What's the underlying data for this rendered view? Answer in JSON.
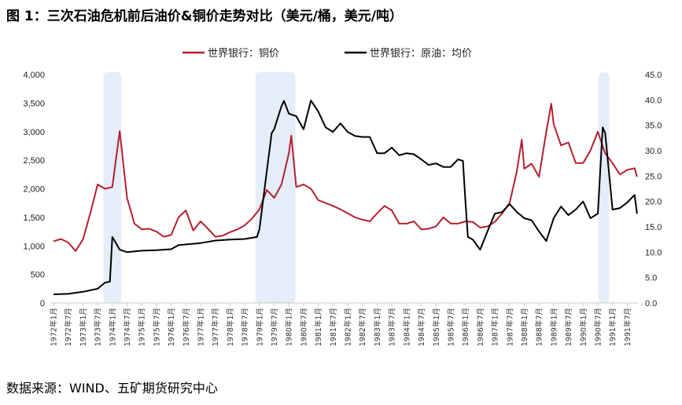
{
  "title": "图 1：三次石油危机前后油价&铜价走势对比（美元/桶，美元/吨）",
  "source": "数据来源：WIND、五矿期货研究中心",
  "chart_data": {
    "type": "line",
    "title": "图 1：三次石油危机前后油价&铜价走势对比（美元/桶，美元/吨）",
    "legend_position": "top",
    "grid": false,
    "colors": {
      "copper": "#b5202e",
      "oil": "#000000",
      "shade": "#e4edf8"
    },
    "left_axis": {
      "ylim": [
        0,
        4000
      ],
      "ticks": [
        "0",
        "500",
        "1,000",
        "1,500",
        "2,000",
        "2,500",
        "3,000",
        "3,500",
        "4,000"
      ]
    },
    "right_axis": {
      "ylim": [
        0,
        45
      ],
      "ticks": [
        "0.0",
        "5.0",
        "10.0",
        "15.0",
        "20.0",
        "25.0",
        "30.0",
        "35.0",
        "40.0",
        "45.0"
      ]
    },
    "x_tick_labels": [
      "1972年1月",
      "1972年7月",
      "1973年1月",
      "1973年7月",
      "1974年1月",
      "1974年7月",
      "1975年1月",
      "1975年7月",
      "1976年1月",
      "1976年7月",
      "1977年1月",
      "1977年7月",
      "1978年1月",
      "1978年7月",
      "1979年1月",
      "1979年7月",
      "1980年1月",
      "1980年7月",
      "1981年1月",
      "1981年7月",
      "1982年1月",
      "1982年7月",
      "1983年1月",
      "1983年7月",
      "1984年1月",
      "1984年7月",
      "1985年1月",
      "1985年7月",
      "1986年1月",
      "1986年7月",
      "1987年1月",
      "1987年7月",
      "1988年1月",
      "1988年7月",
      "1989年1月",
      "1989年7月",
      "1990年1月",
      "1990年7月",
      "1991年1月",
      "1991年7月"
    ],
    "shaded_periods": [
      [
        "1973-10",
        "1974-03"
      ],
      [
        "1978-12",
        "1980-02"
      ],
      [
        "1990-08",
        "1990-10"
      ]
    ],
    "series": [
      {
        "name": "世界银行：铜价",
        "axis": "left",
        "x": [
          "1972-01",
          "1972-04",
          "1972-07",
          "1972-10",
          "1973-01",
          "1973-04",
          "1973-07",
          "1973-10",
          "1974-01",
          "1974-04",
          "1974-07",
          "1974-10",
          "1975-01",
          "1975-04",
          "1975-07",
          "1975-10",
          "1976-01",
          "1976-04",
          "1976-07",
          "1976-10",
          "1977-01",
          "1977-04",
          "1977-07",
          "1977-10",
          "1978-01",
          "1978-04",
          "1978-07",
          "1978-10",
          "1979-01",
          "1979-04",
          "1979-07",
          "1979-10",
          "1980-01",
          "1980-02",
          "1980-04",
          "1980-07",
          "1980-10",
          "1981-01",
          "1981-04",
          "1981-07",
          "1981-10",
          "1982-01",
          "1982-04",
          "1982-07",
          "1982-10",
          "1983-01",
          "1983-04",
          "1983-07",
          "1983-10",
          "1984-01",
          "1984-04",
          "1984-07",
          "1984-10",
          "1985-01",
          "1985-04",
          "1985-07",
          "1985-10",
          "1986-01",
          "1986-04",
          "1986-07",
          "1986-10",
          "1987-01",
          "1987-04",
          "1987-07",
          "1987-10",
          "1987-12",
          "1988-01",
          "1988-04",
          "1988-07",
          "1988-10",
          "1988-12",
          "1989-01",
          "1989-04",
          "1989-07",
          "1989-10",
          "1990-01",
          "1990-04",
          "1990-07",
          "1990-10",
          "1991-01",
          "1991-04",
          "1991-07",
          "1991-10",
          "1991-11"
        ],
        "values": [
          1080,
          1120,
          1060,
          910,
          1110,
          1570,
          2075,
          2000,
          2030,
          3010,
          1840,
          1390,
          1290,
          1300,
          1250,
          1160,
          1190,
          1500,
          1620,
          1270,
          1430,
          1300,
          1160,
          1180,
          1240,
          1290,
          1360,
          1480,
          1640,
          1980,
          1840,
          2075,
          2620,
          2930,
          2030,
          2075,
          2000,
          1800,
          1750,
          1700,
          1640,
          1570,
          1500,
          1460,
          1430,
          1570,
          1700,
          1620,
          1390,
          1390,
          1430,
          1290,
          1300,
          1340,
          1500,
          1390,
          1390,
          1430,
          1420,
          1320,
          1340,
          1420,
          1570,
          1750,
          2310,
          2860,
          2350,
          2440,
          2210,
          3000,
          3490,
          3130,
          2760,
          2810,
          2450,
          2450,
          2670,
          3000,
          2620,
          2450,
          2250,
          2330,
          2360,
          2210
        ]
      },
      {
        "name": "世界银行：原油：均价",
        "axis": "right",
        "x": [
          "1972-01",
          "1972-07",
          "1973-01",
          "1973-07",
          "1973-10",
          "1973-12",
          "1974-01",
          "1974-04",
          "1974-07",
          "1975-01",
          "1975-07",
          "1976-01",
          "1976-04",
          "1977-01",
          "1977-07",
          "1978-01",
          "1978-07",
          "1978-12",
          "1979-01",
          "1979-04",
          "1979-06",
          "1979-07",
          "1979-10",
          "1979-11",
          "1980-01",
          "1980-04",
          "1980-07",
          "1980-10",
          "1981-01",
          "1981-04",
          "1981-07",
          "1981-10",
          "1982-01",
          "1982-04",
          "1982-07",
          "1982-10",
          "1983-01",
          "1983-04",
          "1983-07",
          "1983-10",
          "1984-01",
          "1984-04",
          "1984-07",
          "1984-10",
          "1985-01",
          "1985-04",
          "1985-07",
          "1985-10",
          "1985-12",
          "1986-01",
          "1986-02",
          "1986-04",
          "1986-07",
          "1986-10",
          "1987-01",
          "1987-04",
          "1987-07",
          "1987-10",
          "1988-01",
          "1988-04",
          "1988-07",
          "1988-10",
          "1989-01",
          "1989-04",
          "1989-07",
          "1989-10",
          "1990-01",
          "1990-04",
          "1990-07",
          "1990-09",
          "1990-10",
          "1991-01",
          "1991-04",
          "1991-07",
          "1991-10",
          "1991-11"
        ],
        "values": [
          1.7,
          1.8,
          2.2,
          2.8,
          4.0,
          4.2,
          13.0,
          10.5,
          10.0,
          10.3,
          10.4,
          10.6,
          11.4,
          11.8,
          12.3,
          12.5,
          12.6,
          13.0,
          14.5,
          26.0,
          33.5,
          34.2,
          38.8,
          39.8,
          37.3,
          36.8,
          34.2,
          39.9,
          37.7,
          34.6,
          33.7,
          35.4,
          33.7,
          32.9,
          32.7,
          32.7,
          29.5,
          29.5,
          30.6,
          29.1,
          29.5,
          29.3,
          28.3,
          27.2,
          27.5,
          26.8,
          26.8,
          28.3,
          28.0,
          20.0,
          13.0,
          12.5,
          10.5,
          14.1,
          17.6,
          17.9,
          19.5,
          17.9,
          16.7,
          16.3,
          14.1,
          12.2,
          16.7,
          19.0,
          17.3,
          18.4,
          20.0,
          16.7,
          17.6,
          34.6,
          33.5,
          18.4,
          18.7,
          19.8,
          21.3,
          17.6
        ]
      }
    ]
  }
}
